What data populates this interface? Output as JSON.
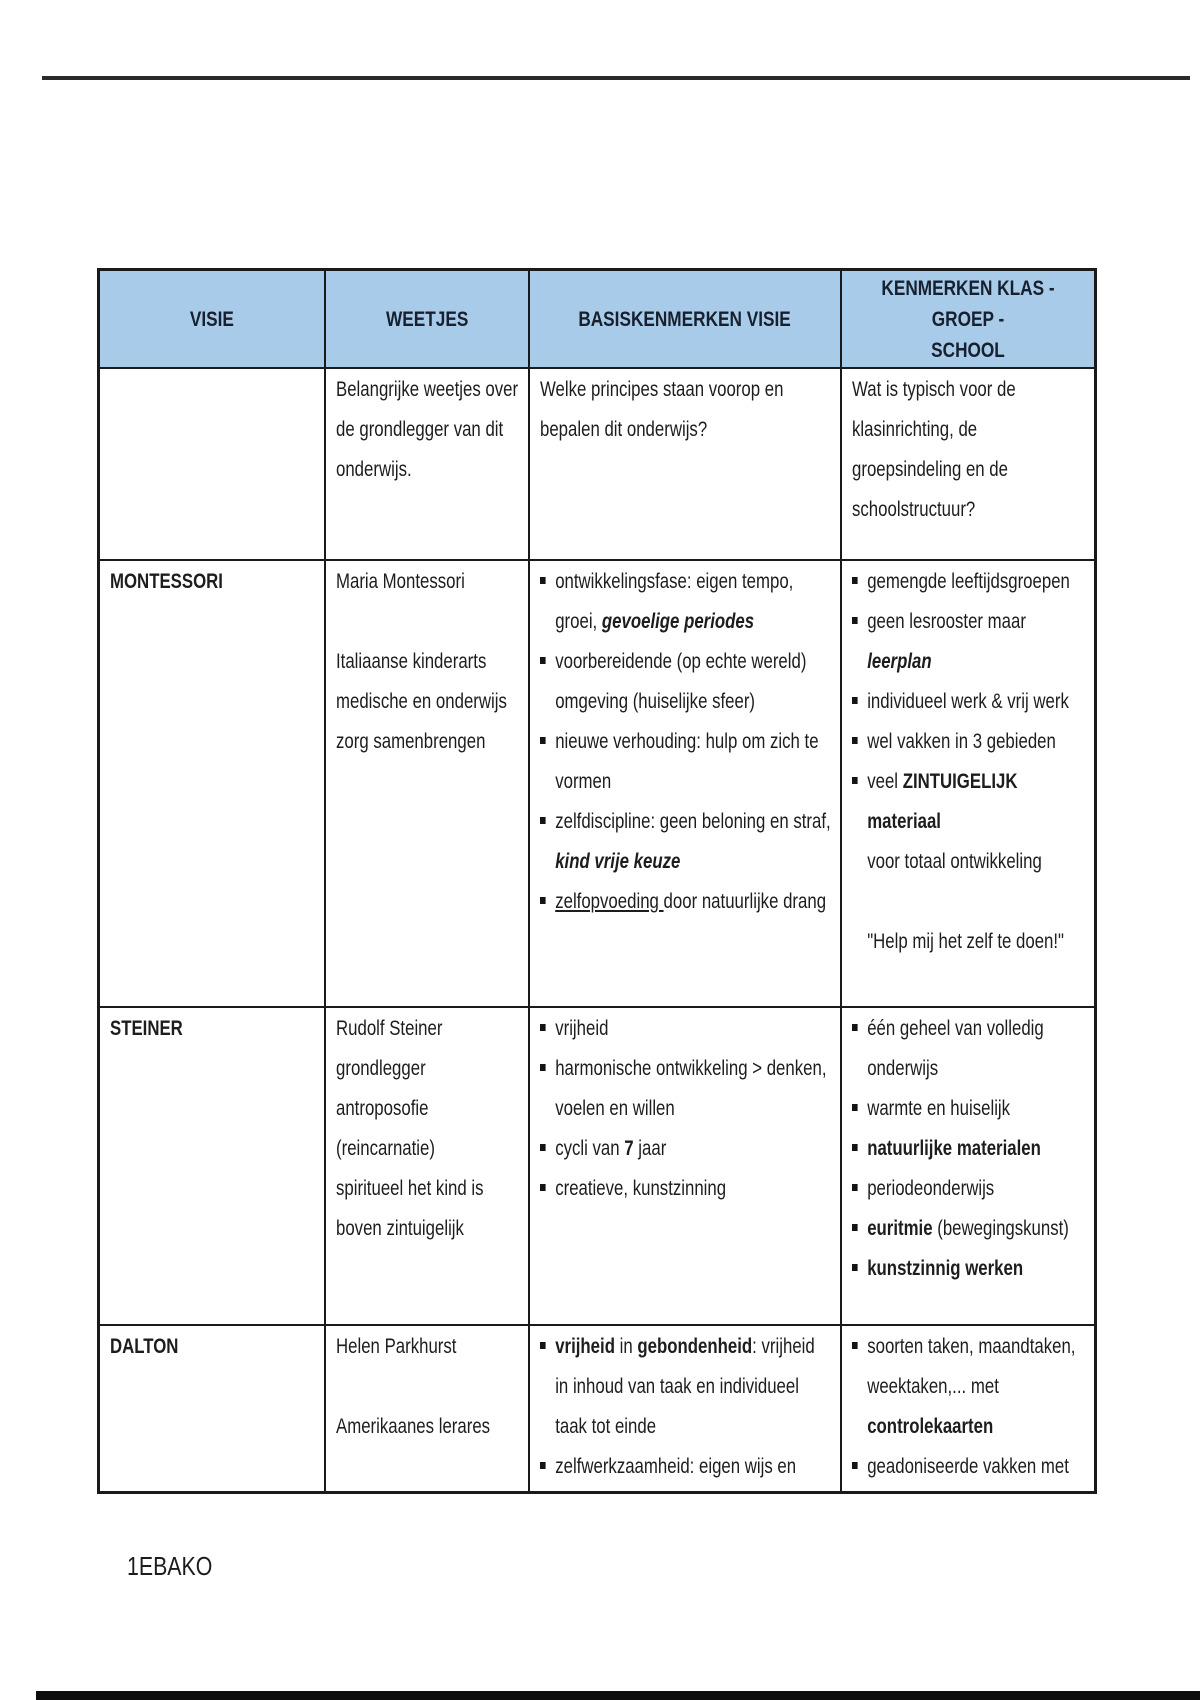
{
  "page": {
    "footer": "1EBAKO"
  },
  "table": {
    "colors": {
      "header_bg": "#a8cbea",
      "border": "#1a1a1a"
    },
    "headers": [
      "VISIE",
      "WEETJES",
      "BASISKENMERKEN VISIE",
      "KENMERKEN KLAS - GROEP -\nSCHOOL"
    ],
    "rows": [
      {
        "key": "intro",
        "cells": [
          {
            "lines": []
          },
          {
            "lines": [
              {
                "seg": [
                  {
                    "t": "Belangrijke weetjes over"
                  }
                ]
              },
              {
                "seg": [
                  {
                    "t": "de grondlegger van dit"
                  }
                ]
              },
              {
                "seg": [
                  {
                    "t": "onderwijs."
                  }
                ]
              }
            ]
          },
          {
            "lines": [
              {
                "seg": [
                  {
                    "t": "Welke principes staan voorop en"
                  }
                ]
              },
              {
                "seg": [
                  {
                    "t": "bepalen dit onderwijs?"
                  }
                ]
              }
            ]
          },
          {
            "lines": [
              {
                "seg": [
                  {
                    "t": "Wat is typisch voor de"
                  }
                ]
              },
              {
                "seg": [
                  {
                    "t": "klasinrichting, de"
                  }
                ]
              },
              {
                "seg": [
                  {
                    "t": "groepsindeling en de"
                  }
                ]
              },
              {
                "seg": [
                  {
                    "t": "schoolstructuur?"
                  }
                ]
              }
            ]
          }
        ]
      },
      {
        "key": "montessori",
        "cells": [
          {
            "lines": [
              {
                "seg": [
                  {
                    "t": "MONTESSORI",
                    "st": "b"
                  }
                ]
              }
            ]
          },
          {
            "lines": [
              {
                "seg": [
                  {
                    "t": "Maria Montessori"
                  }
                ]
              },
              {
                "seg": []
              },
              {
                "seg": [
                  {
                    "t": "Italiaanse kinderarts"
                  }
                ]
              },
              {
                "seg": [
                  {
                    "t": "medische en onderwijs"
                  }
                ]
              },
              {
                "seg": [
                  {
                    "t": "zorg samenbrengen"
                  }
                ]
              }
            ]
          },
          {
            "lines": [
              {
                "b": true,
                "seg": [
                  {
                    "t": "ontwikkelingsfase: eigen tempo,"
                  }
                ]
              },
              {
                "ind": true,
                "seg": [
                  {
                    "t": "groei, "
                  },
                  {
                    "t": "gevoelige periodes",
                    "st": "bi"
                  }
                ]
              },
              {
                "b": true,
                "seg": [
                  {
                    "t": "voorbereidende (op echte wereld)"
                  }
                ]
              },
              {
                "ind": true,
                "seg": [
                  {
                    "t": "omgeving (huiselijke sfeer)"
                  }
                ]
              },
              {
                "b": true,
                "seg": [
                  {
                    "t": "nieuwe verhouding: hulp om zich te"
                  }
                ]
              },
              {
                "ind": true,
                "seg": [
                  {
                    "t": "vormen"
                  }
                ]
              },
              {
                "b": true,
                "seg": [
                  {
                    "t": "zelfdiscipline: geen beloning en straf,"
                  }
                ]
              },
              {
                "ind": true,
                "seg": [
                  {
                    "t": "kind vrije keuze",
                    "st": "bi"
                  }
                ]
              },
              {
                "b": true,
                "seg": [
                  {
                    "t": "zelfopvoeding ",
                    "st": "u"
                  },
                  {
                    "t": "door natuurlijke drang"
                  }
                ]
              }
            ]
          },
          {
            "lines": [
              {
                "b": true,
                "seg": [
                  {
                    "t": "gemengde leeftijdsgroepen"
                  }
                ]
              },
              {
                "b": true,
                "seg": [
                  {
                    "t": "geen lesrooster maar"
                  }
                ]
              },
              {
                "ind": true,
                "seg": [
                  {
                    "t": "leerplan",
                    "st": "bi"
                  }
                ]
              },
              {
                "b": true,
                "seg": [
                  {
                    "t": "individueel werk & vrij werk"
                  }
                ]
              },
              {
                "b": true,
                "seg": [
                  {
                    "t": "wel vakken in 3 gebieden"
                  }
                ]
              },
              {
                "b": true,
                "seg": [
                  {
                    "t": "veel "
                  },
                  {
                    "t": "ZINTUIGELIJK",
                    "st": "b"
                  }
                ]
              },
              {
                "ind": true,
                "seg": [
                  {
                    "t": "materiaal",
                    "st": "b"
                  }
                ]
              },
              {
                "ind": true,
                "seg": [
                  {
                    "t": "voor totaal ontwikkeling"
                  }
                ]
              },
              {
                "seg": []
              },
              {
                "ind": true,
                "seg": [
                  {
                    "t": "\"Help mij het zelf te doen!\""
                  }
                ]
              }
            ]
          }
        ]
      },
      {
        "key": "steiner",
        "cells": [
          {
            "lines": [
              {
                "seg": [
                  {
                    "t": "STEINER",
                    "st": "b"
                  }
                ]
              }
            ]
          },
          {
            "lines": [
              {
                "seg": [
                  {
                    "t": "Rudolf Steiner"
                  }
                ]
              },
              {
                "seg": [
                  {
                    "t": "grondlegger"
                  }
                ]
              },
              {
                "seg": [
                  {
                    "t": "antroposofie"
                  }
                ]
              },
              {
                "seg": [
                  {
                    "t": "(reincarnatie)"
                  }
                ]
              },
              {
                "seg": [
                  {
                    "t": "spiritueel het kind is"
                  }
                ]
              },
              {
                "seg": [
                  {
                    "t": "boven zintuigelijk"
                  }
                ]
              }
            ]
          },
          {
            "lines": [
              {
                "b": true,
                "seg": [
                  {
                    "t": "vrijheid"
                  }
                ]
              },
              {
                "b": true,
                "seg": [
                  {
                    "t": "harmonische ontwikkeling > denken,"
                  }
                ]
              },
              {
                "ind": true,
                "seg": [
                  {
                    "t": "voelen en willen"
                  }
                ]
              },
              {
                "b": true,
                "seg": [
                  {
                    "t": "cycli van "
                  },
                  {
                    "t": "7",
                    "st": "b"
                  },
                  {
                    "t": " jaar"
                  }
                ]
              },
              {
                "b": true,
                "seg": [
                  {
                    "t": "creatieve, kunstzinning"
                  }
                ]
              }
            ]
          },
          {
            "lines": [
              {
                "b": true,
                "seg": [
                  {
                    "t": "één geheel van volledig"
                  }
                ]
              },
              {
                "ind": true,
                "seg": [
                  {
                    "t": "onderwijs"
                  }
                ]
              },
              {
                "b": true,
                "seg": [
                  {
                    "t": "warmte en huiselijk"
                  }
                ]
              },
              {
                "b": true,
                "seg": [
                  {
                    "t": "natuurlijke materialen",
                    "st": "b"
                  }
                ]
              },
              {
                "b": true,
                "seg": [
                  {
                    "t": "periodeonderwijs"
                  }
                ]
              },
              {
                "b": true,
                "seg": [
                  {
                    "t": "euritmie",
                    "st": "b"
                  },
                  {
                    "t": " (bewegingskunst)"
                  }
                ]
              },
              {
                "b": true,
                "seg": [
                  {
                    "t": "kunstzinnig werken",
                    "st": "b"
                  }
                ]
              }
            ]
          }
        ]
      },
      {
        "key": "dalton",
        "cells": [
          {
            "lines": [
              {
                "seg": [
                  {
                    "t": "DALTON",
                    "st": "b"
                  }
                ]
              }
            ]
          },
          {
            "lines": [
              {
                "seg": [
                  {
                    "t": "Helen Parkhurst"
                  }
                ]
              },
              {
                "seg": []
              },
              {
                "seg": [
                  {
                    "t": "Amerikaanes lerares"
                  }
                ]
              }
            ]
          },
          {
            "lines": [
              {
                "b": true,
                "seg": [
                  {
                    "t": "vrijheid",
                    "st": "b"
                  },
                  {
                    "t": " in "
                  },
                  {
                    "t": "gebondenheid",
                    "st": "b"
                  },
                  {
                    "t": ": vrijheid"
                  }
                ]
              },
              {
                "ind": true,
                "seg": [
                  {
                    "t": "in inhoud van taak en individueel"
                  }
                ]
              },
              {
                "ind": true,
                "seg": [
                  {
                    "t": "taak tot einde"
                  }
                ]
              },
              {
                "b": true,
                "seg": [
                  {
                    "t": "zelfwerkzaamheid: eigen wijs en"
                  }
                ]
              }
            ]
          },
          {
            "lines": [
              {
                "b": true,
                "seg": [
                  {
                    "t": "soorten taken, maandtaken,"
                  }
                ]
              },
              {
                "ind": true,
                "seg": [
                  {
                    "t": "weektaken,... met"
                  }
                ]
              },
              {
                "ind": true,
                "seg": [
                  {
                    "t": "controlekaarten",
                    "st": "b"
                  }
                ]
              },
              {
                "b": true,
                "seg": [
                  {
                    "t": "geadoniseerde vakken met"
                  }
                ]
              }
            ]
          }
        ]
      }
    ]
  }
}
